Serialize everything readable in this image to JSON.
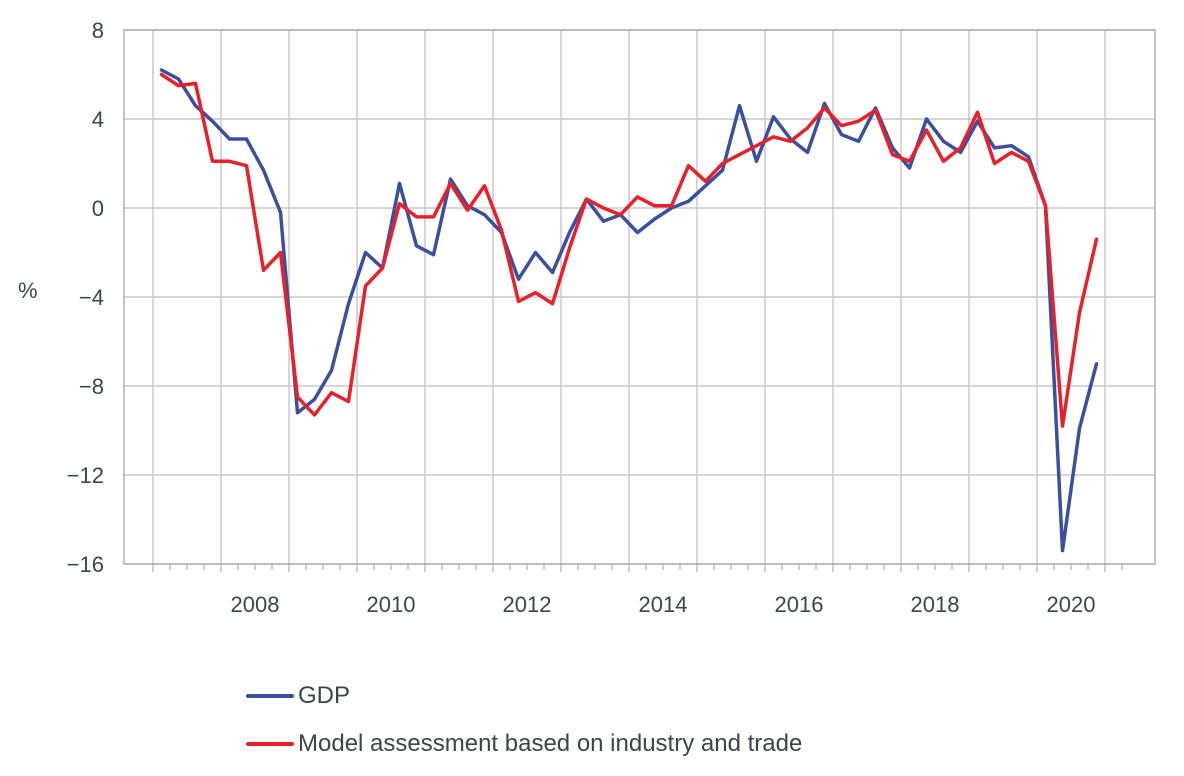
{
  "chart_data": {
    "type": "line",
    "title": "",
    "xlabel": "",
    "ylabel": "%",
    "ylim": [
      -16,
      8
    ],
    "yticks": [
      8,
      4,
      0,
      -4,
      -8,
      -12,
      -16
    ],
    "ytick_labels": [
      "8",
      "4",
      "0",
      "−4",
      "−8",
      "−12",
      "−16"
    ],
    "xlim": [
      "2006Q3",
      "2021Q3"
    ],
    "xtick_labels": [
      "2008",
      "2010",
      "2012",
      "2014",
      "2016",
      "2018",
      "2020"
    ],
    "x_frequency": "quarterly",
    "x_start": "2007Q1",
    "grid": true,
    "legend_position": "bottom",
    "series": [
      {
        "name": "GDP",
        "color": "#3a4fa0",
        "values": [
          6.2,
          5.8,
          4.6,
          3.9,
          3.1,
          3.1,
          1.7,
          -0.2,
          -9.2,
          -8.6,
          -7.3,
          -4.3,
          -2.0,
          -2.7,
          1.1,
          -1.7,
          -2.1,
          1.3,
          0.1,
          -0.3,
          -1.1,
          -3.2,
          -2.0,
          -2.9,
          -1.1,
          0.4,
          -0.6,
          -0.3,
          -1.1,
          -0.5,
          0.0,
          0.3,
          1.0,
          1.7,
          4.6,
          2.1,
          4.1,
          3.1,
          2.5,
          4.7,
          3.3,
          3.0,
          4.5,
          2.7,
          1.8,
          4.0,
          3.0,
          2.5,
          3.9,
          2.7,
          2.8,
          2.3,
          0.1,
          -15.4,
          -9.9,
          -7.0
        ]
      },
      {
        "name": "Model assessment based on industry and trade",
        "color": "#e8202a",
        "values": [
          6.0,
          5.5,
          5.6,
          2.1,
          2.1,
          1.9,
          -2.8,
          -2.0,
          -8.5,
          -9.3,
          -8.3,
          -8.7,
          -3.5,
          -2.7,
          0.2,
          -0.4,
          -0.4,
          1.1,
          -0.1,
          1.0,
          -1.0,
          -4.2,
          -3.8,
          -4.3,
          -1.8,
          0.4,
          0.0,
          -0.3,
          0.5,
          0.1,
          0.1,
          1.9,
          1.2,
          2.0,
          2.4,
          2.8,
          3.2,
          3.0,
          3.6,
          4.5,
          3.7,
          3.9,
          4.4,
          2.4,
          2.1,
          3.5,
          2.1,
          2.7,
          4.3,
          2.0,
          2.5,
          2.1,
          0.1,
          -9.8,
          -4.7,
          -1.4
        ]
      }
    ]
  },
  "legend": {
    "items": [
      {
        "label": "GDP",
        "color": "#3a4fa0"
      },
      {
        "label": "Model assessment based on industry and trade",
        "color": "#e8202a"
      }
    ]
  }
}
